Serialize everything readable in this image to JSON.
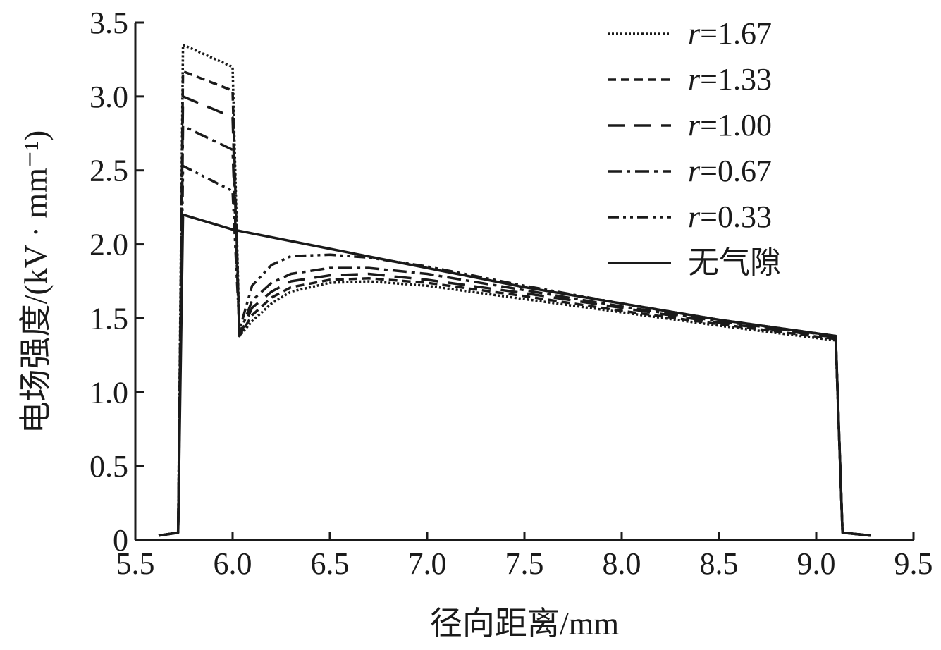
{
  "chart_data": {
    "type": "line",
    "title": "",
    "xlabel": "径向距离/mm",
    "ylabel": "电场强度/(kV · mm⁻¹)",
    "xlim": [
      5.5,
      9.5
    ],
    "ylim": [
      0,
      3.5
    ],
    "x_ticks": [
      "5.5",
      "6.0",
      "6.5",
      "7.0",
      "7.5",
      "8.0",
      "8.5",
      "9.0",
      "9.5"
    ],
    "y_ticks": [
      "0",
      "0.5",
      "1.0",
      "1.5",
      "2.0",
      "2.5",
      "3.0",
      "3.5"
    ],
    "grid": false,
    "legend_position": "top-right",
    "series": [
      {
        "name": "r=1.67",
        "r_value": "1.67",
        "dash": "dotted",
        "points": [
          [
            5.62,
            0.03
          ],
          [
            5.72,
            0.05
          ],
          [
            5.745,
            3.35
          ],
          [
            6.0,
            3.2
          ],
          [
            6.035,
            1.38
          ],
          [
            6.1,
            1.48
          ],
          [
            6.2,
            1.6
          ],
          [
            6.3,
            1.68
          ],
          [
            6.5,
            1.74
          ],
          [
            6.7,
            1.75
          ],
          [
            7.0,
            1.72
          ],
          [
            7.5,
            1.63
          ],
          [
            8.0,
            1.54
          ],
          [
            8.5,
            1.45
          ],
          [
            9.1,
            1.35
          ],
          [
            9.135,
            0.05
          ],
          [
            9.28,
            0.03
          ]
        ]
      },
      {
        "name": "r=1.33",
        "r_value": "1.33",
        "dash": "short-dash",
        "points": [
          [
            5.62,
            0.03
          ],
          [
            5.72,
            0.05
          ],
          [
            5.745,
            3.17
          ],
          [
            6.0,
            3.04
          ],
          [
            6.035,
            1.38
          ],
          [
            6.1,
            1.52
          ],
          [
            6.2,
            1.64
          ],
          [
            6.3,
            1.71
          ],
          [
            6.5,
            1.76
          ],
          [
            6.7,
            1.77
          ],
          [
            7.0,
            1.74
          ],
          [
            7.5,
            1.65
          ],
          [
            8.0,
            1.55
          ],
          [
            8.5,
            1.46
          ],
          [
            9.1,
            1.36
          ],
          [
            9.135,
            0.05
          ],
          [
            9.28,
            0.03
          ]
        ]
      },
      {
        "name": "r=1.00",
        "r_value": "1.00",
        "dash": "long-dash",
        "points": [
          [
            5.62,
            0.03
          ],
          [
            5.72,
            0.05
          ],
          [
            5.745,
            3.0
          ],
          [
            6.0,
            2.86
          ],
          [
            6.035,
            1.38
          ],
          [
            6.1,
            1.57
          ],
          [
            6.2,
            1.68
          ],
          [
            6.3,
            1.75
          ],
          [
            6.5,
            1.79
          ],
          [
            6.7,
            1.8
          ],
          [
            7.0,
            1.76
          ],
          [
            7.5,
            1.67
          ],
          [
            8.0,
            1.57
          ],
          [
            8.5,
            1.47
          ],
          [
            9.1,
            1.37
          ],
          [
            9.135,
            0.05
          ],
          [
            9.28,
            0.03
          ]
        ]
      },
      {
        "name": "r=0.67",
        "r_value": "0.67",
        "dash": "dash-dot",
        "points": [
          [
            5.62,
            0.03
          ],
          [
            5.72,
            0.05
          ],
          [
            5.745,
            2.8
          ],
          [
            6.0,
            2.64
          ],
          [
            6.035,
            1.39
          ],
          [
            6.1,
            1.62
          ],
          [
            6.2,
            1.74
          ],
          [
            6.3,
            1.8
          ],
          [
            6.5,
            1.84
          ],
          [
            6.7,
            1.84
          ],
          [
            7.0,
            1.8
          ],
          [
            7.5,
            1.69
          ],
          [
            8.0,
            1.58
          ],
          [
            8.5,
            1.48
          ],
          [
            9.1,
            1.38
          ],
          [
            9.135,
            0.05
          ],
          [
            9.28,
            0.03
          ]
        ]
      },
      {
        "name": "r=0.33",
        "r_value": "0.33",
        "dash": "dash-dot-dot",
        "points": [
          [
            5.62,
            0.03
          ],
          [
            5.72,
            0.05
          ],
          [
            5.745,
            2.53
          ],
          [
            6.0,
            2.36
          ],
          [
            6.035,
            1.42
          ],
          [
            6.1,
            1.72
          ],
          [
            6.2,
            1.86
          ],
          [
            6.3,
            1.92
          ],
          [
            6.5,
            1.93
          ],
          [
            6.7,
            1.91
          ],
          [
            7.0,
            1.85
          ],
          [
            7.5,
            1.72
          ],
          [
            8.0,
            1.6
          ],
          [
            8.5,
            1.49
          ],
          [
            9.1,
            1.38
          ],
          [
            9.135,
            0.05
          ],
          [
            9.28,
            0.03
          ]
        ]
      },
      {
        "name": "无气隙",
        "dash": "solid",
        "points": [
          [
            5.62,
            0.03
          ],
          [
            5.72,
            0.05
          ],
          [
            5.745,
            2.2
          ],
          [
            6.0,
            2.1
          ],
          [
            6.5,
            1.97
          ],
          [
            7.0,
            1.84
          ],
          [
            7.5,
            1.71
          ],
          [
            8.0,
            1.6
          ],
          [
            8.5,
            1.49
          ],
          [
            9.1,
            1.38
          ],
          [
            9.135,
            0.05
          ],
          [
            9.28,
            0.03
          ]
        ]
      }
    ]
  },
  "colors": {
    "line": "#1a1a1a",
    "background": "#ffffff"
  }
}
